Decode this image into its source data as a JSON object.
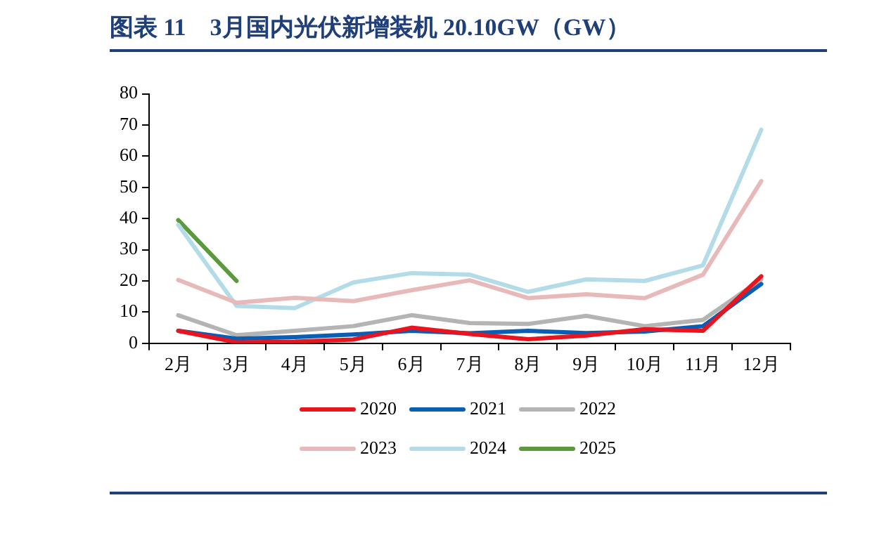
{
  "chart_data": {
    "type": "line",
    "title": "图表 11　3月国内光伏新增装机 20.10GW（GW）",
    "categories": [
      "2月",
      "3月",
      "4月",
      "5月",
      "6月",
      "7月",
      "8月",
      "9月",
      "10月",
      "11月",
      "12月"
    ],
    "series": [
      {
        "name": "2020",
        "color": "#e8141e",
        "values": [
          4,
          0.3,
          0.5,
          1.2,
          5,
          3,
          1.3,
          2.5,
          4.5,
          4,
          21.5
        ]
      },
      {
        "name": "2021",
        "color": "#0a5fb4",
        "values": [
          4,
          1.5,
          2,
          2.8,
          4,
          3.2,
          4,
          3.3,
          3.8,
          5.5,
          19
        ]
      },
      {
        "name": "2022",
        "color": "#b4b4b4",
        "values": [
          9,
          2.6,
          4,
          5.5,
          9,
          6.5,
          6.2,
          8.8,
          5.5,
          7.5,
          20.5
        ]
      },
      {
        "name": "2023",
        "color": "#e8b9b9",
        "values": [
          20.3,
          13,
          14.6,
          13.5,
          17,
          20.2,
          14.5,
          15.7,
          14.5,
          22,
          52
        ]
      },
      {
        "name": "2024",
        "color": "#b4dce8",
        "values": [
          38,
          12,
          11.3,
          19.5,
          22.5,
          22,
          16.5,
          20.5,
          20,
          25,
          68.5
        ]
      },
      {
        "name": "2025",
        "color": "#5a9a3c",
        "values": [
          39.5,
          20,
          null,
          null,
          null,
          null,
          null,
          null,
          null,
          null,
          null
        ]
      }
    ],
    "ylim": [
      0,
      80
    ],
    "yticks": [
      0,
      10,
      20,
      30,
      40,
      50,
      60,
      70,
      80
    ],
    "grid": false,
    "legend": "bottom",
    "marker": "none",
    "line_style": "solid"
  }
}
